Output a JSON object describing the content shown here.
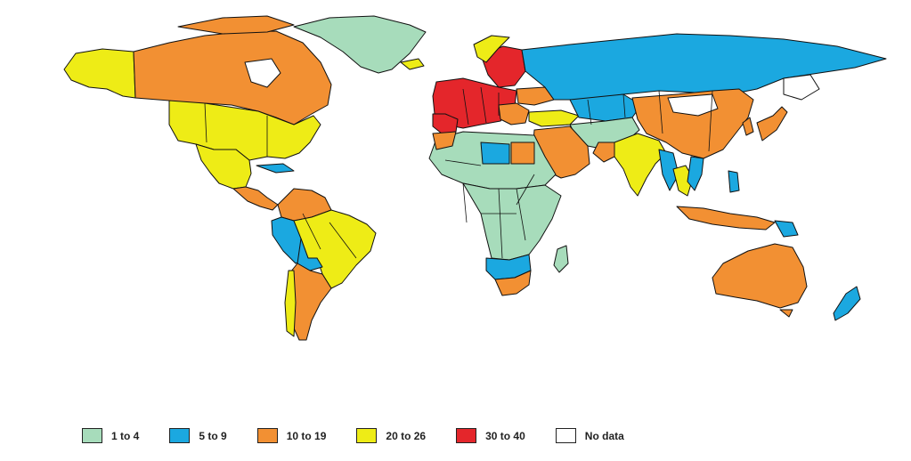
{
  "colors": {
    "c1": "#a7dcbb",
    "c2": "#1ba8e0",
    "c3": "#f29033",
    "c4": "#eeec16",
    "c5": "#e4262b",
    "nodata": "#ffffff"
  },
  "legend": {
    "items": [
      {
        "label": "1 to 4",
        "color": "#a7dcbb"
      },
      {
        "label": "5 to 9",
        "color": "#1ba8e0"
      },
      {
        "label": "10 to 19",
        "color": "#f29033"
      },
      {
        "label": "20 to 26",
        "color": "#eeec16"
      },
      {
        "label": "30 to 40",
        "color": "#e4262b"
      },
      {
        "label": "No data",
        "color": "#ffffff"
      }
    ]
  }
}
